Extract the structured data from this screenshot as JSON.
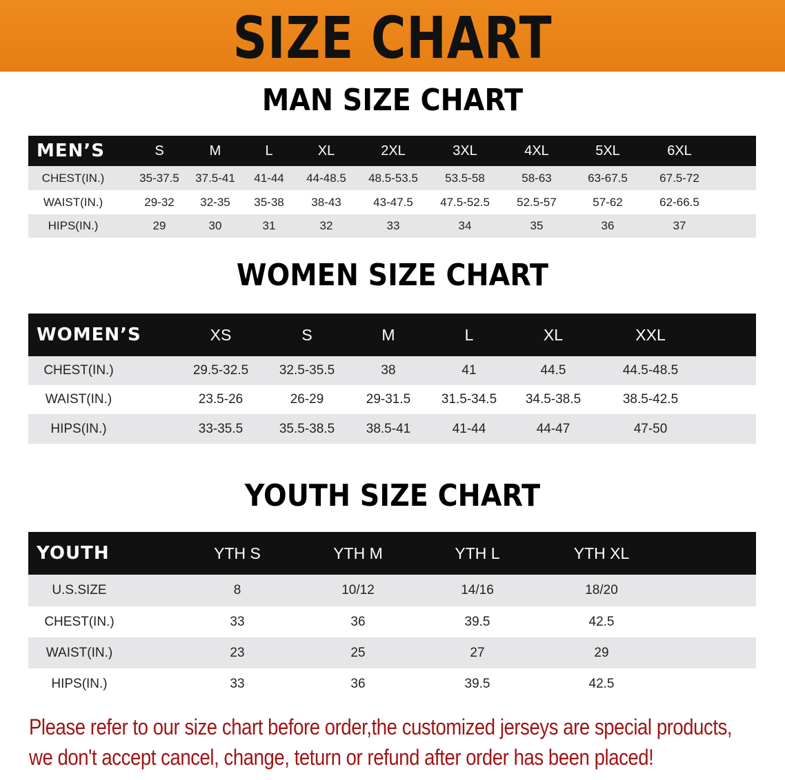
{
  "banner_title": "SIZE CHART",
  "men": {
    "title": "MAN SIZE CHART",
    "header_label": "MEN’S",
    "sizes": [
      "S",
      "M",
      "L",
      "XL",
      "2XL",
      "3XL",
      "4XL",
      "5XL",
      "6XL"
    ],
    "rows": [
      {
        "label": "CHEST(IN.)",
        "values": [
          "35-37.5",
          "37.5-41",
          "41-44",
          "44-48.5",
          "48.5-53.5",
          "53.5-58",
          "58-63",
          "63-67.5",
          "67.5-72"
        ]
      },
      {
        "label": "WAIST(IN.)",
        "values": [
          "29-32",
          "32-35",
          "35-38",
          "38-43",
          "43-47.5",
          "47.5-52.5",
          "52.5-57",
          "57-62",
          "62-66.5"
        ]
      },
      {
        "label": "HIPS(IN.)",
        "values": [
          "29",
          "30",
          "31",
          "32",
          "33",
          "34",
          "35",
          "36",
          "37"
        ]
      }
    ]
  },
  "women": {
    "title": "WOMEN SIZE CHART",
    "header_label": "WOMEN’S",
    "sizes": [
      "XS",
      "S",
      "M",
      "L",
      "XL",
      "XXL"
    ],
    "rows": [
      {
        "label": "CHEST(IN.)",
        "values": [
          "29.5-32.5",
          "32.5-35.5",
          "38",
          "41",
          "44.5",
          "44.5-48.5"
        ]
      },
      {
        "label": "WAIST(IN.)",
        "values": [
          "23.5-26",
          "26-29",
          "29-31.5",
          "31.5-34.5",
          "34.5-38.5",
          "38.5-42.5"
        ]
      },
      {
        "label": "HIPS(IN.)",
        "values": [
          "33-35.5",
          "35.5-38.5",
          "38.5-41",
          "41-44",
          "44-47",
          "47-50"
        ]
      }
    ]
  },
  "youth": {
    "title": "YOUTH SIZE CHART",
    "header_label": "YOUTH",
    "sizes": [
      "YTH S",
      "YTH M",
      "YTH L",
      "YTH XL"
    ],
    "rows": [
      {
        "label": "U.S.SIZE",
        "values": [
          "8",
          "10/12",
          "14/16",
          "18/20"
        ]
      },
      {
        "label": "CHEST(IN.)",
        "values": [
          "33",
          "36",
          "39.5",
          "42.5"
        ]
      },
      {
        "label": "WAIST(IN.)",
        "values": [
          "23",
          "25",
          "27",
          "29"
        ]
      },
      {
        "label": "HIPS(IN.)",
        "values": [
          "33",
          "36",
          "39.5",
          "42.5"
        ]
      }
    ]
  },
  "notice": {
    "line1": "Please refer to our size chart before order,the customized jerseys are special products,",
    "line2": "we don't accept cancel, change, teturn or refund after order has been placed!",
    "color": "#a01515"
  },
  "colors": {
    "banner": "#e8821a",
    "header_bg": "#111111",
    "row_gray": "#e6e6e8"
  }
}
